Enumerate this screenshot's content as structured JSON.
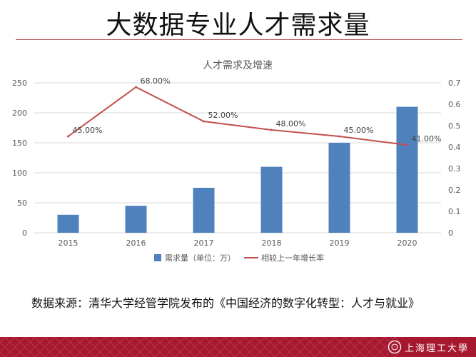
{
  "slide": {
    "title": "大数据专业人才需求量",
    "source": "数据来源：清华大学经管学院发布的《中国经济的数字化转型：人才与就业》",
    "footer_logo_text": "上海理工大學"
  },
  "colors": {
    "bar": "#4f81bd",
    "line": "#c0504d",
    "footer": "#a5182d",
    "title_rule": "#b5515d"
  },
  "chart_data": {
    "type": "bar+line",
    "title": "人才需求及增速",
    "categories": [
      "2015",
      "2016",
      "2017",
      "2018",
      "2019",
      "2020"
    ],
    "series": [
      {
        "name": "需求量（单位：万）",
        "type": "bar",
        "axis": "left",
        "values": [
          30,
          45,
          75,
          110,
          150,
          210
        ]
      },
      {
        "name": "相较上一年增长率",
        "type": "line",
        "axis": "right",
        "values": [
          0.45,
          0.68,
          0.52,
          0.48,
          0.45,
          0.41
        ],
        "labels": [
          "45.00%",
          "68.00%",
          "52.00%",
          "48.00%",
          "45.00%",
          "41.00%"
        ]
      }
    ],
    "y_left": {
      "min": 0,
      "max": 250,
      "ticks": [
        "0",
        "50",
        "100",
        "150",
        "200",
        "250"
      ]
    },
    "y_right": {
      "min": 0,
      "max": 0.7,
      "ticks": [
        "0",
        "0.1",
        "0.2",
        "0.3",
        "0.4",
        "0.5",
        "0.6",
        "0.7"
      ]
    },
    "grid": true,
    "legend_position": "bottom"
  }
}
